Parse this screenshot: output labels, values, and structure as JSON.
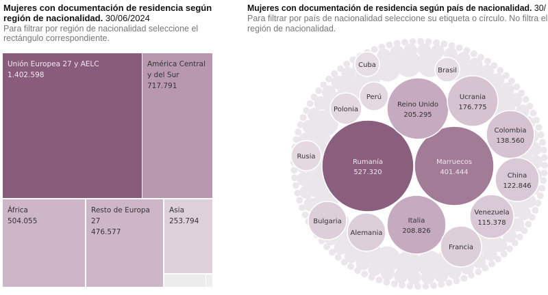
{
  "left": {
    "title_bold": "Mujeres con documentación de residencia según región de nacionalidad.",
    "title_date": "30/06/2024",
    "subtitle_line1": "Para filtrar por región de nacionalidad seleccione el",
    "subtitle_line2": "rectángulo correspondiente."
  },
  "right": {
    "title_bold": "Mujeres con documentación de residencia según país de nacionalidad.",
    "title_date": "30/",
    "subtitle_line1": "Para filtrar por país de nacionalidad seleccione su etiqueta o círculo. No filtra el",
    "subtitle_line2": "región de nacionalidad."
  },
  "chart_data": [
    {
      "type": "treemap",
      "items": [
        {
          "label": "Unión Europea 27 y AELC",
          "value_text": "1.402.598",
          "value": 1402598,
          "color": "#8a5c7c"
        },
        {
          "label": "América Central y del Sur",
          "value_text": "717.791",
          "value": 717791,
          "color": "#b898af"
        },
        {
          "label": "África",
          "value_text": "504.055",
          "value": 504055,
          "color": "#cdb6c8"
        },
        {
          "label": "Resto de Europa 27",
          "value_text": "476.577",
          "value": 476577,
          "color": "#cdb6c8"
        },
        {
          "label": "Asia",
          "value_text": "253.794",
          "value": 253794,
          "color": "#ddd0da"
        }
      ]
    },
    {
      "type": "packed-bubble",
      "items": [
        {
          "label": "Rumanía",
          "value_text": "527.320",
          "value": 527320,
          "color": "#8a5f7e"
        },
        {
          "label": "Marruecos",
          "value_text": "401.444",
          "value": 401444,
          "color": "#a27c97"
        },
        {
          "label": "Italia",
          "value_text": "208.826",
          "value": 208826,
          "color": "#c6aabf"
        },
        {
          "label": "Reino Unido",
          "value_text": "205.295",
          "value": 205295,
          "color": "#c6aabf"
        },
        {
          "label": "Ucrania",
          "value_text": "176.775",
          "value": 176775,
          "color": "#d6c3d1"
        },
        {
          "label": "Colombia",
          "value_text": "138.560",
          "value": 138560,
          "color": "#d6c3d1"
        },
        {
          "label": "China",
          "value_text": "122.846",
          "value": 122846,
          "color": "#d9c8d5"
        },
        {
          "label": "Venezuela",
          "value_text": "115.378",
          "value": 115378,
          "color": "#d9c8d5"
        },
        {
          "label": "Francia",
          "value_text": "",
          "value": null,
          "color": "#ddcfda"
        },
        {
          "label": "Alemania",
          "value_text": "",
          "value": null,
          "color": "#ddcfda"
        },
        {
          "label": "Bulgaria",
          "value_text": "",
          "value": null,
          "color": "#ddcfda"
        },
        {
          "label": "Polonia",
          "value_text": "",
          "value": null,
          "color": "#e4d9e1"
        },
        {
          "label": "Rusia",
          "value_text": "",
          "value": null,
          "color": "#e4d9e1"
        },
        {
          "label": "Perú",
          "value_text": "",
          "value": null,
          "color": "#e4d9e1"
        },
        {
          "label": "Cuba",
          "value_text": "",
          "value": null,
          "color": "#e7dde4"
        },
        {
          "label": "Brasil",
          "value_text": "",
          "value": null,
          "color": "#e7dde4"
        }
      ],
      "other_color": "#ebe6ea"
    }
  ]
}
